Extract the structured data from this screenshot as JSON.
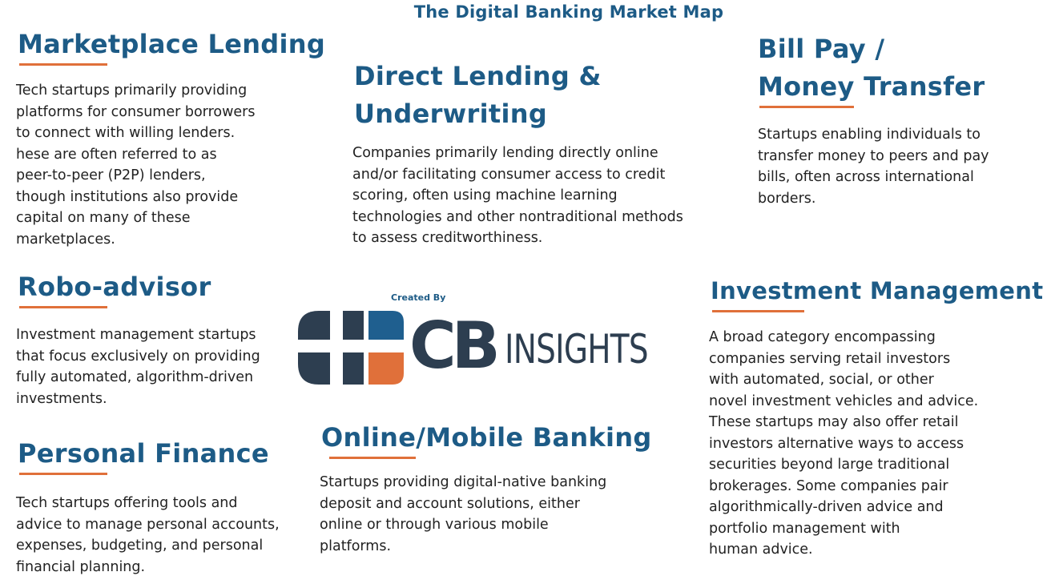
{
  "title": "The Digital Banking Market Map",
  "sections": {
    "marketplace_lending": {
      "heading": "Marketplace Lending",
      "body": "Tech startups primarily providing\nplatforms for consumer borrowers\nto connect with willing lenders.\nhese are often referred to as\npeer-to-peer (P2P) lenders,\nthough institutions also provide\ncapital on many of these\nmarketplaces."
    },
    "direct_lending": {
      "heading": "Direct Lending &\nUnderwriting",
      "body": "Companies primarily lending directly online\nand/or facilitating consumer access to credit\nscoring, often using machine learning\ntechnologies and other nontraditional methods\nto assess creditworthiness."
    },
    "bill_pay": {
      "heading": "Bill Pay /\nMoney Transfer",
      "body": "Startups enabling individuals to\ntransfer money to peers and pay\nbills, often across international\nborders."
    },
    "robo_advisor": {
      "heading": "Robo-advisor",
      "body": "Investment management startups\nthat focus exclusively on providing\nfully automated, algorithm-driven\ninvestments."
    },
    "investment_management": {
      "heading": "Investment Management",
      "body": "A broad category encompassing\ncompanies serving retail investors\nwith automated, social, or other\nnovel investment vehicles and advice.\nThese startups may also offer retail\ninvestors alternative ways to access\nsecurities beyond large traditional\nbrokerages. Some companies pair\nalgorithmically-driven advice and\nportfolio management with\nhuman advice."
    },
    "personal_finance": {
      "heading": "Personal Finance",
      "body": "Tech startups offering tools and\nadvice to manage personal accounts,\nexpenses, budgeting, and personal\nfinancial planning."
    },
    "online_banking": {
      "heading": "Online/Mobile Banking",
      "body": "Startups providing digital-native banking\ndeposit and account solutions, either\nonline or through various mobile\nplatforms."
    }
  },
  "logo": {
    "created_by": "Created By",
    "cb": "CB",
    "insights": "INSIGHTS"
  },
  "colors": {
    "heading": "#1d5b86",
    "accent": "#e0703a",
    "logo_dark": "#2d3e50",
    "logo_blue": "#1f5f8f"
  }
}
